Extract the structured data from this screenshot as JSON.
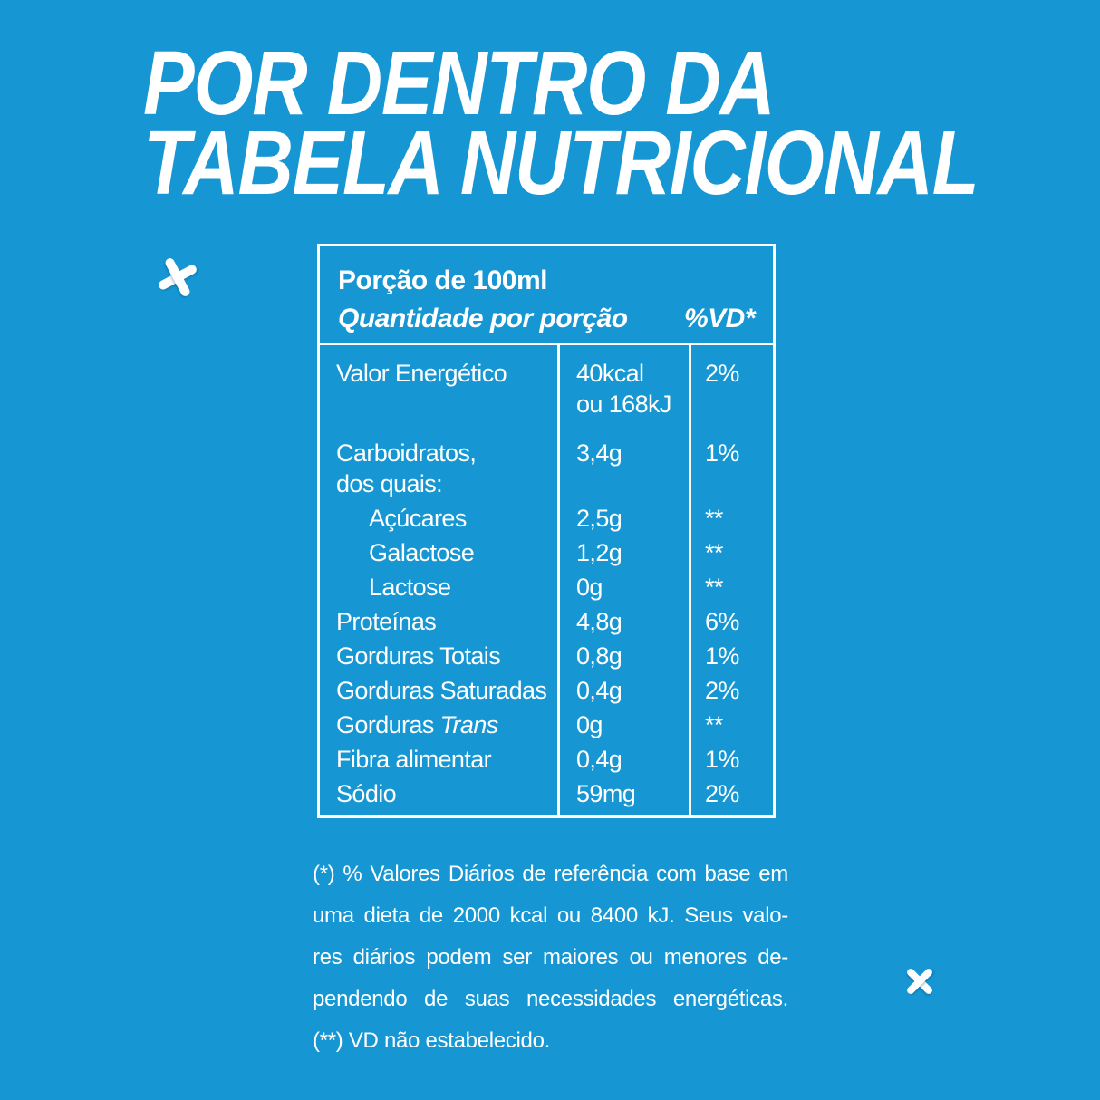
{
  "colors": {
    "background": "#1697d3",
    "foreground": "#ffffff"
  },
  "title": {
    "lines": [
      "POR DENTRO DA",
      "TABELA NUTRICIONAL"
    ]
  },
  "icons": {
    "left_decoration": "cross-icon",
    "right_decoration": "cross-icon"
  },
  "table": {
    "serving": "Porção de 100ml",
    "col_header_left": "Quantidade por porção",
    "col_header_right": "%VD*",
    "rows": [
      {
        "label": [
          "Valor Energético"
        ],
        "qty": [
          "40kcal",
          "ou 168kJ"
        ],
        "vd": "2%"
      },
      {
        "label": [
          "Carboidratos,",
          "dos quais:"
        ],
        "qty": [
          "3,4g"
        ],
        "vd": "1%"
      },
      {
        "label": [
          "Açúcares"
        ],
        "indent": true,
        "qty": [
          "2,5g"
        ],
        "vd": "**"
      },
      {
        "label": [
          "Galactose"
        ],
        "indent": true,
        "qty": [
          "1,2g"
        ],
        "vd": "**"
      },
      {
        "label": [
          "Lactose"
        ],
        "indent": true,
        "qty": [
          "0g"
        ],
        "vd": "**"
      },
      {
        "label": [
          "Proteínas"
        ],
        "qty": [
          "4,8g"
        ],
        "vd": "6%"
      },
      {
        "label": [
          "Gorduras Totais"
        ],
        "qty": [
          "0,8g"
        ],
        "vd": "1%"
      },
      {
        "label": [
          "Gorduras Saturadas"
        ],
        "qty": [
          "0,4g"
        ],
        "vd": "2%"
      },
      {
        "label": [
          "Gorduras "
        ],
        "label_italic": "Trans",
        "qty": [
          "0g"
        ],
        "vd": "**"
      },
      {
        "label": [
          "Fibra alimentar"
        ],
        "qty": [
          "0,4g"
        ],
        "vd": "1%"
      },
      {
        "label": [
          "Sódio"
        ],
        "qty": [
          "59mg"
        ],
        "vd": "2%"
      }
    ]
  },
  "footnote": {
    "lines": [
      "(*) % Valores Diários de referência com base em",
      "uma dieta de 2000 kcal ou 8400 kJ. Seus valo-",
      "res diários podem ser maiores ou menores de-",
      "pendendo de suas necessidades energéticas.",
      "(**) VD não estabelecido."
    ],
    "justified_line_count": 4
  }
}
